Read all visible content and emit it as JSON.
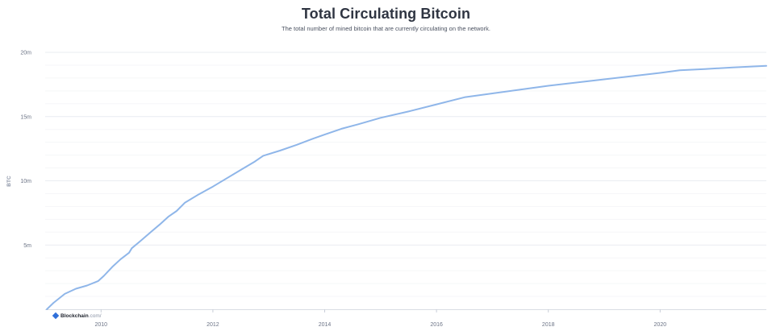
{
  "chart_data": {
    "type": "line",
    "title": "Total Circulating Bitcoin",
    "subtitle": "The total number of mined bitcoin that are currently circulating on the network.",
    "ylabel": "BTC",
    "xlabel": "",
    "xlim": [
      2009.0,
      2021.9
    ],
    "ylim": [
      0,
      20000000
    ],
    "grid": "horizontal",
    "line_color": "#8fb6e9",
    "y_ticks": [
      {
        "value": 5000000,
        "label": "5m"
      },
      {
        "value": 10000000,
        "label": "10m"
      },
      {
        "value": 15000000,
        "label": "15m"
      },
      {
        "value": 20000000,
        "label": "20m"
      }
    ],
    "x_ticks": [
      {
        "value": 2010,
        "label": "2010"
      },
      {
        "value": 2012,
        "label": "2012"
      },
      {
        "value": 2014,
        "label": "2014"
      },
      {
        "value": 2016,
        "label": "2016"
      },
      {
        "value": 2018,
        "label": "2018"
      },
      {
        "value": 2020,
        "label": "2020"
      }
    ],
    "series": [
      {
        "x": [
          2009.03,
          2009.15,
          2009.35,
          2009.55,
          2009.75,
          2009.95,
          2010.05,
          2010.2,
          2010.35,
          2010.5,
          2010.55,
          2010.7,
          2010.9,
          2011.05,
          2011.2,
          2011.35,
          2011.5,
          2011.75,
          2012.0,
          2012.25,
          2012.5,
          2012.75,
          2012.9,
          2013.2,
          2013.5,
          2013.8,
          2014.0,
          2014.3,
          2014.6,
          2015.0,
          2015.5,
          2016.0,
          2016.5,
          2017.0,
          2017.5,
          2018.0,
          2018.5,
          2019.0,
          2019.5,
          2020.0,
          2020.35,
          2020.8,
          2021.3,
          2021.9
        ],
        "y": [
          0,
          500000,
          1200000,
          1600000,
          1850000,
          2200000,
          2600000,
          3300000,
          3900000,
          4400000,
          4750000,
          5300000,
          6050000,
          6600000,
          7200000,
          7650000,
          8300000,
          8950000,
          9550000,
          10200000,
          10850000,
          11500000,
          11950000,
          12350000,
          12800000,
          13300000,
          13600000,
          14050000,
          14400000,
          14900000,
          15400000,
          15950000,
          16500000,
          16800000,
          17100000,
          17400000,
          17650000,
          17900000,
          18150000,
          18400000,
          18600000,
          18700000,
          18820000,
          18950000
        ]
      }
    ]
  },
  "watermark": {
    "brand": "Blockchain",
    "tld": ".com/"
  }
}
